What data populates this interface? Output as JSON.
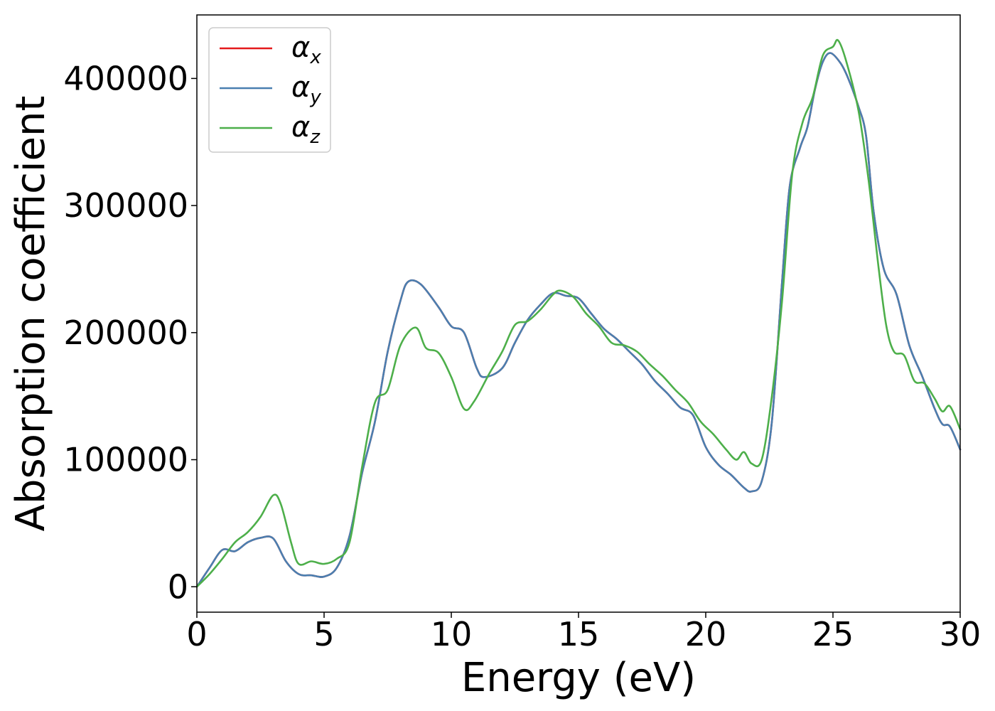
{
  "chart_data": {
    "type": "line",
    "title": "",
    "xlabel": "Energy (eV)",
    "ylabel": "Absorption coefficient",
    "xlim": [
      0,
      30
    ],
    "ylim": [
      -20000,
      450000
    ],
    "xticks": [
      0,
      5,
      10,
      15,
      20,
      25,
      30
    ],
    "xtick_labels": [
      "0",
      "5",
      "10",
      "15",
      "20",
      "25",
      "30"
    ],
    "yticks": [
      0,
      100000,
      200000,
      300000,
      400000
    ],
    "ytick_labels": [
      "0",
      "100000",
      "200000",
      "300000",
      "400000"
    ],
    "grid": false,
    "legend_position": "top-left",
    "series": [
      {
        "name": "α",
        "subscript": "x",
        "color": "#e41a1c",
        "points": [
          [
            0,
            0
          ],
          [
            0.5,
            15000
          ],
          [
            1,
            29000
          ],
          [
            1.5,
            28000
          ],
          [
            2,
            35000
          ],
          [
            2.5,
            38500
          ],
          [
            3,
            38000
          ],
          [
            3.5,
            20000
          ],
          [
            4,
            10000
          ],
          [
            4.5,
            9000
          ],
          [
            5,
            8000
          ],
          [
            5.5,
            15000
          ],
          [
            6,
            40000
          ],
          [
            6.5,
            90000
          ],
          [
            7,
            130000
          ],
          [
            7.5,
            185000
          ],
          [
            8,
            225000
          ],
          [
            8.3,
            240000
          ],
          [
            8.8,
            238000
          ],
          [
            9.5,
            220000
          ],
          [
            10,
            205000
          ],
          [
            10.5,
            200000
          ],
          [
            11,
            172000
          ],
          [
            11.3,
            165000
          ],
          [
            12,
            172000
          ],
          [
            12.5,
            192000
          ],
          [
            13,
            210000
          ],
          [
            13.5,
            222000
          ],
          [
            14,
            231000
          ],
          [
            14.5,
            229000
          ],
          [
            15,
            227000
          ],
          [
            15.5,
            215000
          ],
          [
            16,
            203000
          ],
          [
            16.5,
            195000
          ],
          [
            17,
            185000
          ],
          [
            17.5,
            175000
          ],
          [
            18,
            162000
          ],
          [
            18.5,
            152000
          ],
          [
            19,
            141000
          ],
          [
            19.5,
            135000
          ],
          [
            20,
            110000
          ],
          [
            20.5,
            96000
          ],
          [
            21,
            88000
          ],
          [
            21.5,
            78000
          ],
          [
            21.8,
            75000
          ],
          [
            22.2,
            83000
          ],
          [
            22.6,
            130000
          ],
          [
            23,
            240000
          ],
          [
            23.3,
            315000
          ],
          [
            23.7,
            345000
          ],
          [
            24,
            362000
          ],
          [
            24.3,
            392000
          ],
          [
            24.6,
            413000
          ],
          [
            24.9,
            420000
          ],
          [
            25.3,
            412000
          ],
          [
            25.6,
            400000
          ],
          [
            26,
            378000
          ],
          [
            26.3,
            355000
          ],
          [
            26.6,
            295000
          ],
          [
            27,
            250000
          ],
          [
            27.5,
            230000
          ],
          [
            28,
            190000
          ],
          [
            28.5,
            166000
          ],
          [
            29,
            140000
          ],
          [
            29.3,
            128000
          ],
          [
            29.6,
            126000
          ],
          [
            30,
            108000
          ]
        ]
      },
      {
        "name": "α",
        "subscript": "y",
        "color": "#4a7fb0",
        "points": [
          [
            0,
            0
          ],
          [
            0.5,
            15000
          ],
          [
            1,
            29000
          ],
          [
            1.5,
            28000
          ],
          [
            2,
            35000
          ],
          [
            2.5,
            38500
          ],
          [
            3,
            38000
          ],
          [
            3.5,
            20000
          ],
          [
            4,
            10000
          ],
          [
            4.5,
            9000
          ],
          [
            5,
            8000
          ],
          [
            5.5,
            15000
          ],
          [
            6,
            40000
          ],
          [
            6.5,
            90000
          ],
          [
            7,
            130000
          ],
          [
            7.5,
            185000
          ],
          [
            8,
            225000
          ],
          [
            8.3,
            240000
          ],
          [
            8.8,
            238000
          ],
          [
            9.5,
            220000
          ],
          [
            10,
            205000
          ],
          [
            10.5,
            200000
          ],
          [
            11,
            172000
          ],
          [
            11.3,
            165000
          ],
          [
            12,
            172000
          ],
          [
            12.5,
            192000
          ],
          [
            13,
            210000
          ],
          [
            13.5,
            222000
          ],
          [
            14,
            231000
          ],
          [
            14.5,
            229000
          ],
          [
            15,
            227000
          ],
          [
            15.5,
            215000
          ],
          [
            16,
            203000
          ],
          [
            16.5,
            195000
          ],
          [
            17,
            185000
          ],
          [
            17.5,
            175000
          ],
          [
            18,
            162000
          ],
          [
            18.5,
            152000
          ],
          [
            19,
            141000
          ],
          [
            19.5,
            135000
          ],
          [
            20,
            110000
          ],
          [
            20.5,
            96000
          ],
          [
            21,
            88000
          ],
          [
            21.5,
            78000
          ],
          [
            21.8,
            75000
          ],
          [
            22.2,
            83000
          ],
          [
            22.6,
            130000
          ],
          [
            23,
            240000
          ],
          [
            23.3,
            315000
          ],
          [
            23.7,
            345000
          ],
          [
            24,
            362000
          ],
          [
            24.3,
            392000
          ],
          [
            24.6,
            413000
          ],
          [
            24.9,
            420000
          ],
          [
            25.3,
            412000
          ],
          [
            25.6,
            400000
          ],
          [
            26,
            378000
          ],
          [
            26.3,
            355000
          ],
          [
            26.6,
            295000
          ],
          [
            27,
            250000
          ],
          [
            27.5,
            230000
          ],
          [
            28,
            190000
          ],
          [
            28.5,
            166000
          ],
          [
            29,
            140000
          ],
          [
            29.3,
            128000
          ],
          [
            29.6,
            126000
          ],
          [
            30,
            108000
          ]
        ]
      },
      {
        "name": "α",
        "subscript": "z",
        "color": "#4daf4a",
        "points": [
          [
            0,
            0
          ],
          [
            0.5,
            10000
          ],
          [
            1,
            22000
          ],
          [
            1.5,
            35000
          ],
          [
            2,
            43000
          ],
          [
            2.5,
            55000
          ],
          [
            3,
            72000
          ],
          [
            3.3,
            65000
          ],
          [
            3.7,
            35000
          ],
          [
            4,
            18000
          ],
          [
            4.5,
            20000
          ],
          [
            5,
            18000
          ],
          [
            5.5,
            22000
          ],
          [
            6,
            35000
          ],
          [
            6.5,
            95000
          ],
          [
            7,
            145000
          ],
          [
            7.5,
            155000
          ],
          [
            8,
            190000
          ],
          [
            8.6,
            204000
          ],
          [
            9,
            188000
          ],
          [
            9.5,
            184000
          ],
          [
            10,
            165000
          ],
          [
            10.5,
            140000
          ],
          [
            10.9,
            146000
          ],
          [
            11.5,
            168000
          ],
          [
            12,
            185000
          ],
          [
            12.5,
            206000
          ],
          [
            13,
            209000
          ],
          [
            13.5,
            218000
          ],
          [
            14,
            230000
          ],
          [
            14.3,
            233000
          ],
          [
            14.8,
            228000
          ],
          [
            15.3,
            215000
          ],
          [
            15.8,
            205000
          ],
          [
            16.3,
            192000
          ],
          [
            16.8,
            190000
          ],
          [
            17.3,
            185000
          ],
          [
            17.8,
            175000
          ],
          [
            18.3,
            166000
          ],
          [
            18.8,
            155000
          ],
          [
            19.3,
            145000
          ],
          [
            19.8,
            130000
          ],
          [
            20.3,
            120000
          ],
          [
            20.8,
            108000
          ],
          [
            21.2,
            100000
          ],
          [
            21.5,
            106000
          ],
          [
            21.8,
            97000
          ],
          [
            22.2,
            100000
          ],
          [
            22.6,
            150000
          ],
          [
            23,
            225000
          ],
          [
            23.4,
            325000
          ],
          [
            23.8,
            365000
          ],
          [
            24.2,
            385000
          ],
          [
            24.6,
            418000
          ],
          [
            25,
            425000
          ],
          [
            25.2,
            430000
          ],
          [
            25.5,
            415000
          ],
          [
            26,
            375000
          ],
          [
            26.4,
            320000
          ],
          [
            26.8,
            250000
          ],
          [
            27.1,
            205000
          ],
          [
            27.4,
            185000
          ],
          [
            27.8,
            182000
          ],
          [
            28.2,
            162000
          ],
          [
            28.6,
            160000
          ],
          [
            29,
            148000
          ],
          [
            29.3,
            138000
          ],
          [
            29.6,
            142000
          ],
          [
            30,
            124000
          ]
        ]
      }
    ]
  }
}
